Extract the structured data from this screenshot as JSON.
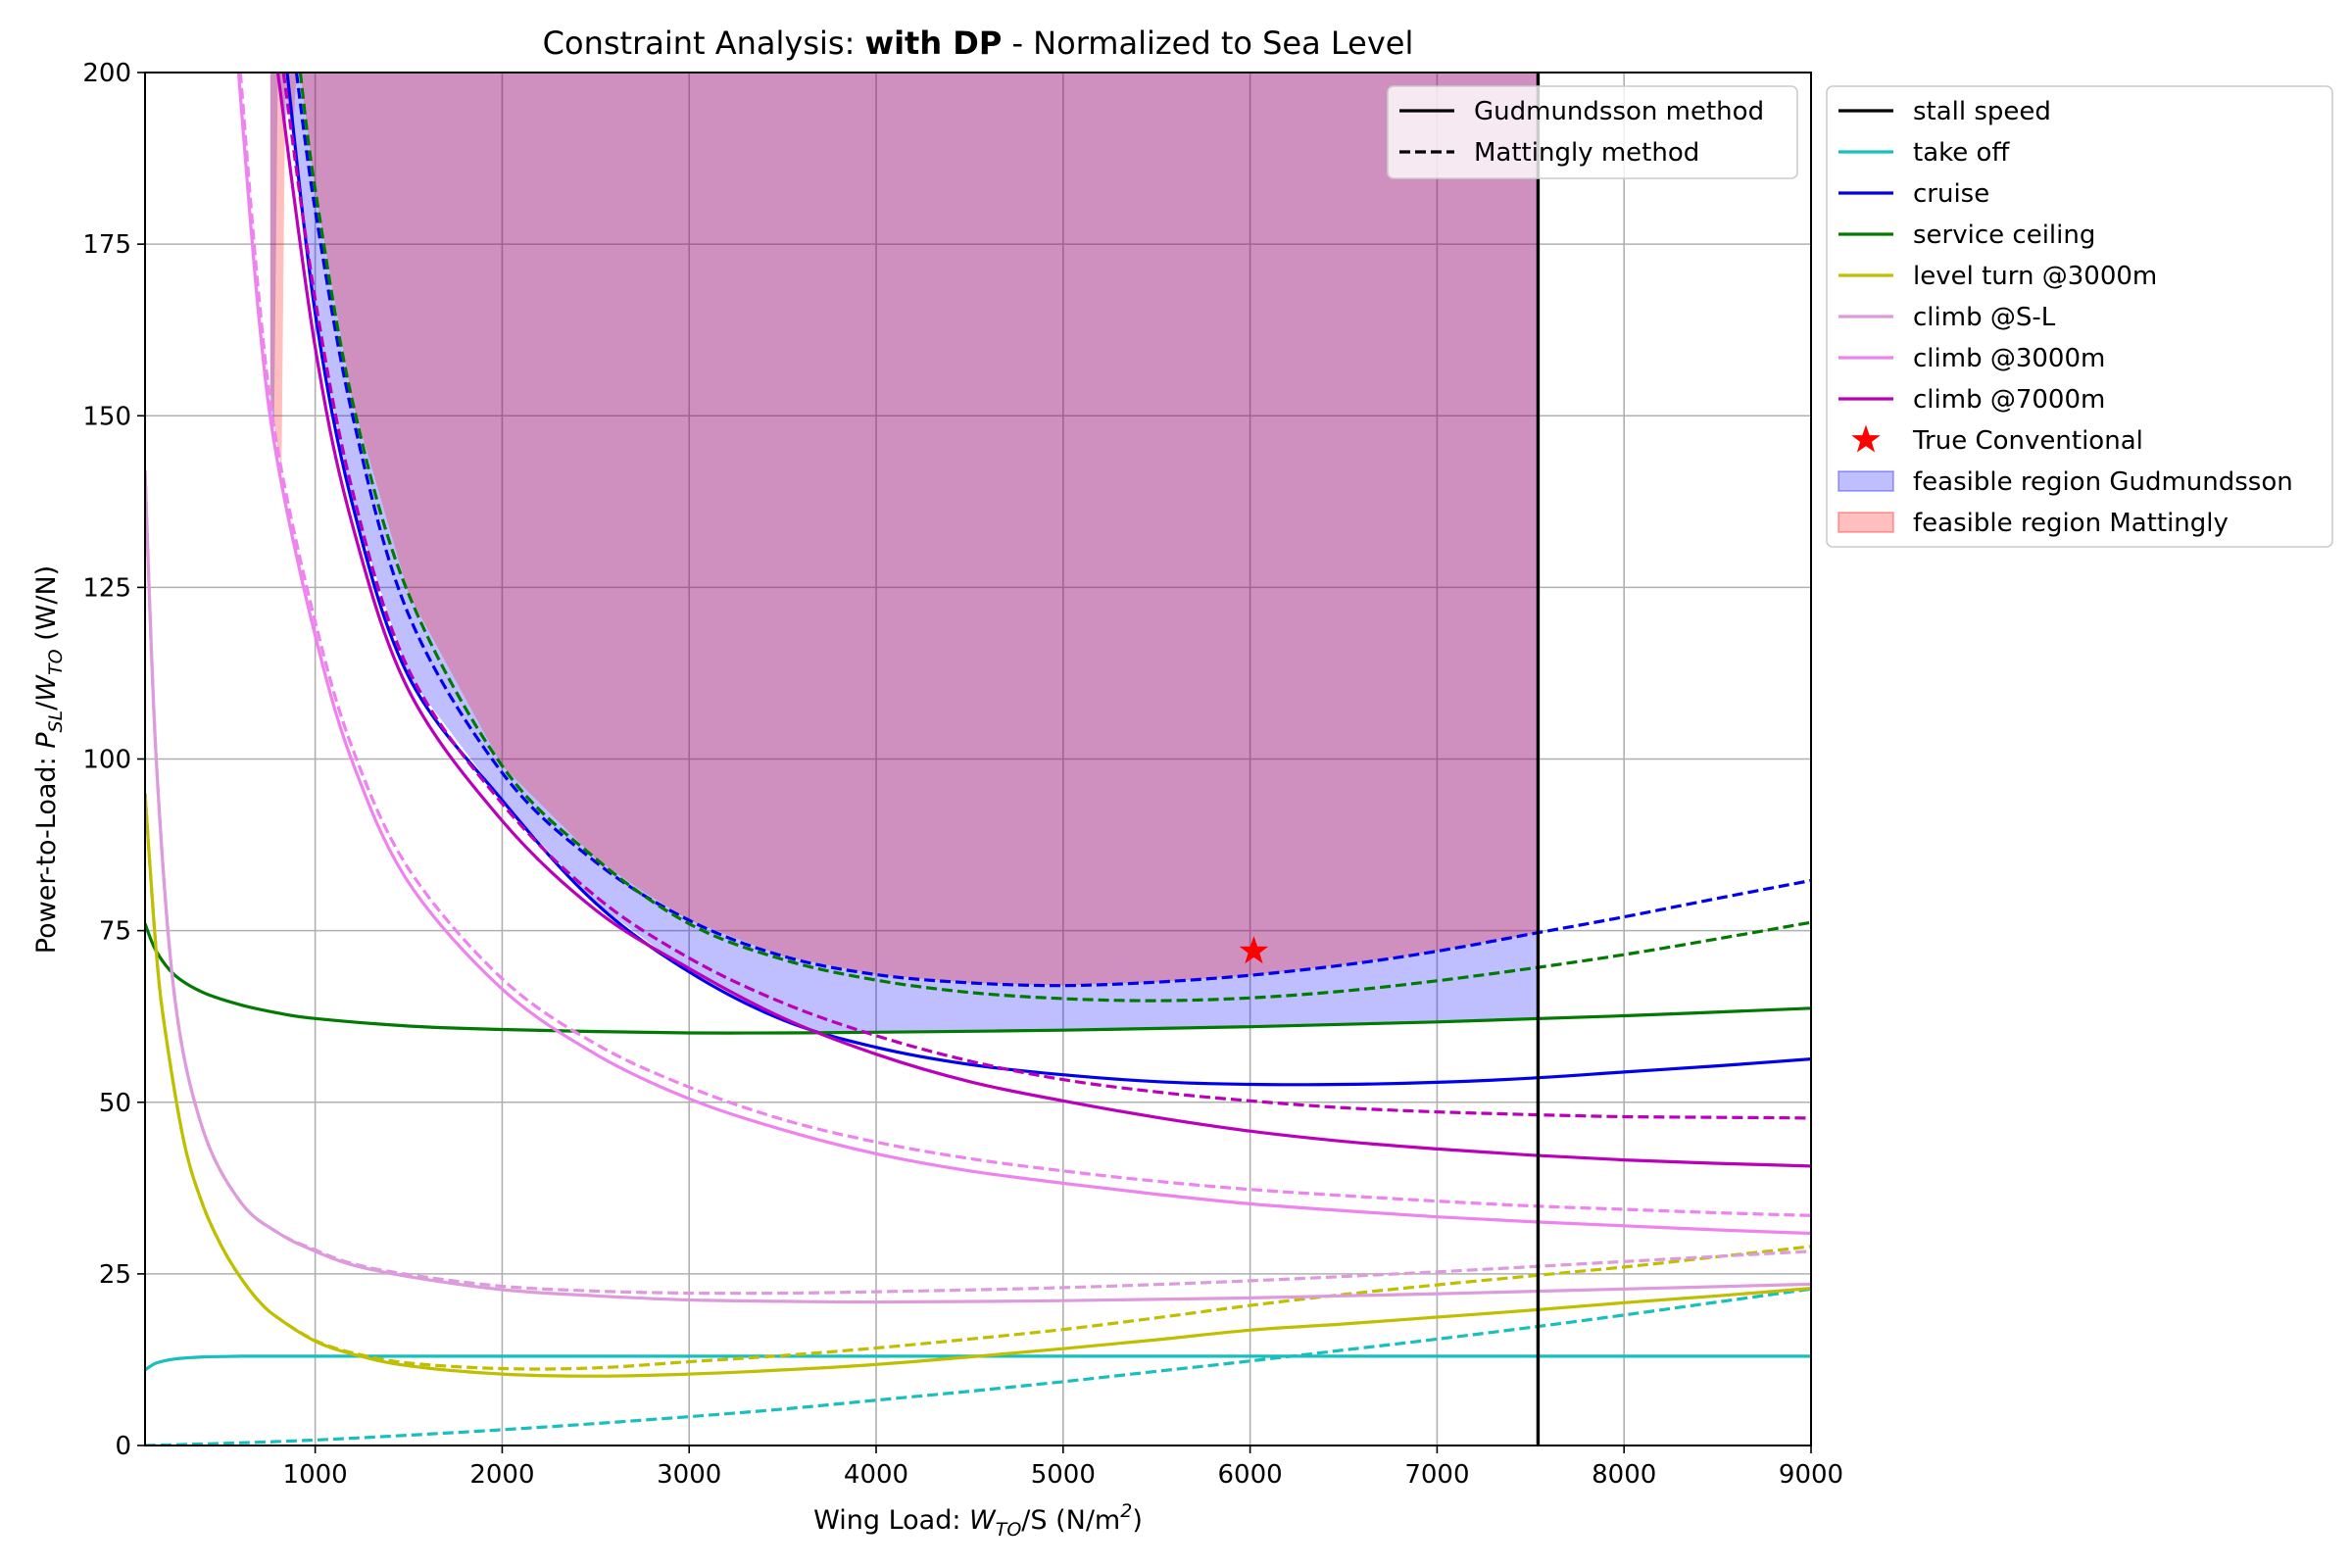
{
  "chart_data": {
    "type": "line",
    "title": {
      "prefix": "Constraint Analysis: ",
      "bold": "with DP",
      "suffix": " - Normalized to Sea Level"
    },
    "xlabel": {
      "text": "Wing Load: ",
      "var": "W",
      "sub": "TO",
      "unit_pre": "/S (N/m",
      "sup": "2",
      "unit_post": ")"
    },
    "ylabel": {
      "text": "Power-to-Load: ",
      "var1": "P",
      "sub1": "SL",
      "slash": "/",
      "var2": "W",
      "sub2": "TO",
      "unit": " (W/N)"
    },
    "xlim": [
      90,
      9000
    ],
    "ylim": [
      0,
      200
    ],
    "x_ticks": [
      1000,
      2000,
      3000,
      4000,
      5000,
      6000,
      7000,
      8000,
      9000
    ],
    "y_ticks": [
      0,
      25,
      50,
      75,
      100,
      125,
      150,
      175,
      200
    ],
    "grid": true,
    "style_legend": {
      "placement": "upper-right-inside",
      "entries": [
        {
          "label": "Gudmundsson method",
          "dash": "solid"
        },
        {
          "label": "Mattingly method",
          "dash": "dashed"
        }
      ]
    },
    "series_legend": {
      "placement": "outside-right",
      "entries": [
        {
          "label": "stall speed",
          "color": "#000000",
          "kind": "line"
        },
        {
          "label": "take off",
          "color": "#17bfbf",
          "kind": "line"
        },
        {
          "label": "cruise",
          "color": "#0000ee",
          "kind": "line"
        },
        {
          "label": "service ceiling",
          "color": "#007a00",
          "kind": "line"
        },
        {
          "label": "level turn @3000m",
          "color": "#bfbf00",
          "kind": "line"
        },
        {
          "label": "climb @S-L",
          "color": "#dd9add",
          "kind": "line"
        },
        {
          "label": "climb @3000m",
          "color": "#ee82ee",
          "kind": "line"
        },
        {
          "label": "climb @7000m",
          "color": "#bb00bb",
          "kind": "line"
        },
        {
          "label": "True Conventional",
          "color": "#ff0000",
          "kind": "star"
        },
        {
          "label": "feasible region Gudmundsson",
          "color": "#0000ff",
          "kind": "patch"
        },
        {
          "label": "feasible region Mattingly",
          "color": "#ff0000",
          "kind": "patch"
        }
      ]
    },
    "stall_speed_x": 7540,
    "design_point": {
      "name": "True Conventional",
      "x": 6020,
      "y": 72,
      "color": "#ff0000"
    },
    "feasible_regions": [
      {
        "name": "feasible region Gudmundsson",
        "color": "#0000ff",
        "alpha": 0.25,
        "lower_bound": "cruise|solid, climb @7000m|solid, service ceiling|solid, cruise|solid",
        "x_max": 7540,
        "y_top": 200
      },
      {
        "name": "feasible region Mattingly",
        "color": "#ff0000",
        "alpha": 0.25,
        "lower_bound": "service ceiling|dashed, cruise|dashed",
        "x_max": 7540,
        "y_top": 200
      }
    ],
    "series": [
      {
        "name": "take off",
        "method": "Gudmundsson",
        "color": "#17bfbf",
        "dash": "solid",
        "x": [
          90,
          150,
          250,
          400,
          600,
          800,
          1000,
          2000,
          3000,
          4000,
          5000,
          6000,
          7000,
          8000,
          9000
        ],
        "y": [
          11,
          12,
          12.6,
          12.9,
          13,
          13,
          13,
          13,
          13,
          13,
          13,
          13,
          13,
          13,
          13
        ]
      },
      {
        "name": "take off",
        "method": "Mattingly",
        "color": "#17bfbf",
        "dash": "dashed",
        "x": [
          90,
          500,
          1000,
          1500,
          2000,
          2500,
          3000,
          3500,
          4000,
          4500,
          5000,
          5500,
          6000,
          6500,
          7000,
          7500,
          8000,
          8500,
          9000
        ],
        "y": [
          0,
          0.3,
          0.8,
          1.5,
          2.3,
          3.2,
          4.2,
          5.3,
          6.6,
          7.9,
          9.3,
          10.8,
          12.3,
          13.9,
          15.5,
          17.2,
          19,
          20.9,
          22.8
        ]
      },
      {
        "name": "cruise",
        "method": "Gudmundsson",
        "color": "#0000ee",
        "dash": "solid",
        "x": [
          850,
          1000,
          1200,
          1500,
          2000,
          2500,
          3000,
          3500,
          4000,
          4500,
          5000,
          5500,
          6000,
          6500,
          7000,
          7500,
          8000,
          8500,
          9000
        ],
        "y": [
          200,
          165,
          137,
          112,
          94,
          79,
          69,
          62,
          58,
          55.5,
          54,
          53,
          52.6,
          52.6,
          52.9,
          53.5,
          54.4,
          55.3,
          56.3
        ]
      },
      {
        "name": "cruise",
        "method": "Mattingly",
        "color": "#0000ee",
        "dash": "dashed",
        "x": [
          900,
          1000,
          1200,
          1500,
          2000,
          2500,
          3000,
          3500,
          4000,
          4500,
          5000,
          5500,
          6000,
          6500,
          7000,
          7500,
          8000,
          8500,
          9000
        ],
        "y": [
          200,
          180,
          150,
          121,
          98,
          85,
          76.5,
          71.3,
          68.6,
          67.4,
          67,
          67.5,
          68.5,
          70,
          72,
          74.5,
          77,
          79.7,
          82.3
        ]
      },
      {
        "name": "service ceiling",
        "method": "Gudmundsson",
        "color": "#007a00",
        "dash": "solid",
        "x": [
          90,
          150,
          250,
          400,
          600,
          800,
          1000,
          1500,
          2000,
          2500,
          3000,
          3500,
          4000,
          5000,
          6000,
          7000,
          8000,
          9000
        ],
        "y": [
          76,
          72,
          68.5,
          66,
          64.2,
          63,
          62.2,
          61.1,
          60.6,
          60.3,
          60.1,
          60.1,
          60.2,
          60.5,
          61,
          61.7,
          62.6,
          63.7
        ]
      },
      {
        "name": "service ceiling",
        "method": "Mattingly",
        "color": "#007a00",
        "dash": "dashed",
        "x": [
          920,
          1000,
          1200,
          1500,
          2000,
          2500,
          3000,
          3500,
          4000,
          4500,
          5000,
          5500,
          6000,
          6500,
          7000,
          7500,
          8000,
          8500,
          9000
        ],
        "y": [
          200,
          183,
          152,
          124,
          99,
          85.5,
          76,
          70.8,
          67.8,
          66,
          65.1,
          64.8,
          65.2,
          66.2,
          67.7,
          69.5,
          71.5,
          73.8,
          76.2
        ]
      },
      {
        "name": "level turn @3000m",
        "method": "Gudmundsson",
        "color": "#bfbf00",
        "dash": "solid",
        "x": [
          90,
          150,
          200,
          300,
          400,
          500,
          600,
          700,
          800,
          1000,
          1200,
          1500,
          2000,
          2500,
          3000,
          3500,
          4000,
          4500,
          5000,
          5500,
          6000,
          6500,
          7000,
          7500,
          8000,
          8500,
          9000
        ],
        "y": [
          95,
          72,
          60,
          44,
          35,
          29,
          24.5,
          21,
          18.6,
          15.2,
          13.3,
          11.6,
          10.4,
          10.1,
          10.4,
          11,
          11.8,
          12.9,
          14.1,
          15.4,
          16.8,
          17.7,
          18.7,
          19.7,
          20.8,
          21.8,
          22.9
        ]
      },
      {
        "name": "level turn @3000m",
        "method": "Mattingly",
        "color": "#bfbf00",
        "dash": "dashed",
        "x": [
          90,
          150,
          200,
          300,
          400,
          500,
          600,
          700,
          800,
          1000,
          1200,
          1500,
          2000,
          2500,
          3000,
          3500,
          4000,
          4500,
          5000,
          5500,
          6000,
          6500,
          7000,
          7500,
          8000,
          8500,
          9000
        ],
        "y": [
          95,
          72,
          60,
          44,
          35,
          29,
          24.5,
          21,
          18.6,
          15.3,
          13.5,
          12,
          11.2,
          11.3,
          12.2,
          13.1,
          14.2,
          15.5,
          16.9,
          18.6,
          20.4,
          22,
          23.4,
          24.7,
          26,
          27.5,
          29
        ]
      },
      {
        "name": "climb @S-L",
        "method": "Gudmundsson",
        "color": "#dd9add",
        "dash": "solid",
        "x": [
          90,
          150,
          250,
          400,
          600,
          800,
          1000,
          1200,
          1500,
          2000,
          2500,
          3000,
          3500,
          4000,
          5000,
          6000,
          7000,
          8000,
          9000
        ],
        "y": [
          142,
          100,
          65,
          46,
          35.5,
          31,
          28.3,
          26.3,
          24.6,
          22.7,
          21.8,
          21.2,
          21,
          20.9,
          21.1,
          21.5,
          22.1,
          22.8,
          23.5
        ]
      },
      {
        "name": "climb @S-L",
        "method": "Mattingly",
        "color": "#dd9add",
        "dash": "dashed",
        "x": [
          90,
          150,
          250,
          400,
          600,
          800,
          1000,
          1200,
          1500,
          2000,
          2500,
          3000,
          3500,
          4000,
          5000,
          6000,
          7000,
          8000,
          9000
        ],
        "y": [
          142,
          100,
          65,
          46,
          35.5,
          31,
          28.5,
          26.5,
          24.9,
          23.2,
          22.5,
          22.2,
          22.2,
          22.4,
          23,
          24,
          25.3,
          26.8,
          28.3
        ]
      },
      {
        "name": "climb @3000m",
        "method": "Gudmundsson",
        "color": "#ee82ee",
        "dash": "solid",
        "x": [
          590,
          700,
          800,
          1000,
          1200,
          1500,
          2000,
          2500,
          3000,
          3500,
          4000,
          4500,
          5000,
          5500,
          6000,
          6500,
          7000,
          7500,
          8000,
          8500,
          9000
        ],
        "y": [
          200,
          164,
          143,
          118,
          99.5,
          82,
          66.5,
          57,
          50.5,
          46,
          42.5,
          40,
          38.2,
          36.6,
          35.2,
          34.2,
          33.3,
          32.6,
          32,
          31.4,
          30.9
        ]
      },
      {
        "name": "climb @3000m",
        "method": "Mattingly",
        "color": "#ee82ee",
        "dash": "dashed",
        "x": [
          600,
          700,
          800,
          1000,
          1200,
          1500,
          2000,
          2500,
          3000,
          3500,
          4000,
          4500,
          5000,
          5500,
          6000,
          6500,
          7000,
          7500,
          8000,
          8500,
          9000
        ],
        "y": [
          200,
          167,
          145,
          120,
          101.5,
          84,
          68,
          58.5,
          52.2,
          47.5,
          44.2,
          41.8,
          40,
          38.5,
          37.3,
          36.4,
          35.6,
          34.9,
          34.4,
          33.9,
          33.5
        ]
      },
      {
        "name": "climb @7000m",
        "method": "Gudmundsson",
        "color": "#bb00bb",
        "dash": "solid",
        "x": [
          800,
          1000,
          1200,
          1500,
          2000,
          2500,
          3000,
          3500,
          4000,
          4500,
          5000,
          5500,
          6000,
          6500,
          7000,
          7500,
          8000,
          8500,
          9000
        ],
        "y": [
          200,
          160,
          134,
          110,
          91,
          78,
          69.5,
          62.3,
          57,
          53,
          50.2,
          47.8,
          45.8,
          44.3,
          43.2,
          42.3,
          41.6,
          41.1,
          40.7
        ]
      },
      {
        "name": "climb @7000m",
        "method": "Mattingly",
        "color": "#bb00bb",
        "dash": "dashed",
        "x": [
          830,
          1000,
          1200,
          1500,
          2000,
          2500,
          3000,
          3500,
          4000,
          4500,
          5000,
          5500,
          6000,
          6500,
          7000,
          7500,
          8000,
          8500,
          9000
        ],
        "y": [
          200,
          167,
          139,
          113,
          93.5,
          80,
          71,
          64.5,
          59.7,
          56,
          53.3,
          51.5,
          50.2,
          49.2,
          48.6,
          48.2,
          47.9,
          47.8,
          47.7
        ]
      }
    ]
  }
}
